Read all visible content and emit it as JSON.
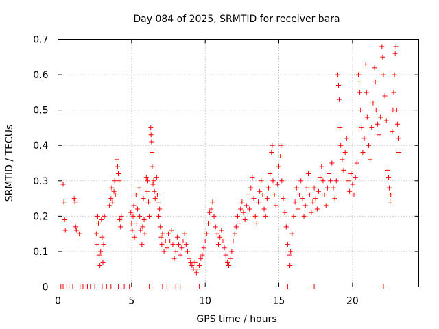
{
  "chart_data": {
    "type": "scatter",
    "title": "Day 084 of 2025, SRMTID for receiver bara",
    "xlabel": "GPS time / hours",
    "ylabel": "SRMTID / TECUs",
    "xlim": [
      0,
      24.5
    ],
    "ylim": [
      0,
      0.7
    ],
    "xticks": [
      0,
      5,
      10,
      15,
      20
    ],
    "xtick_labels": [
      "0",
      "5",
      "10",
      "15",
      "20"
    ],
    "yticks": [
      0,
      0.1,
      0.2,
      0.3,
      0.4,
      0.5,
      0.6,
      0.7
    ],
    "ytick_labels": [
      "0",
      "0.1",
      "0.2",
      "0.3",
      "0.4",
      "0.5",
      "0.6",
      "0.7"
    ],
    "grid": true,
    "marker": "+",
    "color": "#ff0000",
    "series": [
      {
        "name": "SRMTID",
        "points": [
          [
            0.2,
            0.0
          ],
          [
            0.35,
            0.0
          ],
          [
            0.6,
            0.0
          ],
          [
            0.75,
            0.0
          ],
          [
            1.0,
            0.0
          ],
          [
            1.5,
            0.0
          ],
          [
            1.7,
            0.0
          ],
          [
            2.0,
            0.0
          ],
          [
            2.2,
            0.0
          ],
          [
            2.5,
            0.0
          ],
          [
            3.0,
            0.0
          ],
          [
            3.3,
            0.0
          ],
          [
            3.6,
            0.0
          ],
          [
            4.1,
            0.0
          ],
          [
            4.5,
            0.0
          ],
          [
            4.85,
            0.0
          ],
          [
            6.2,
            0.0
          ],
          [
            7.1,
            0.0
          ],
          [
            7.4,
            0.0
          ],
          [
            8.0,
            0.0
          ],
          [
            8.3,
            0.0
          ],
          [
            9.6,
            0.0
          ],
          [
            15.6,
            0.0
          ],
          [
            17.4,
            0.0
          ],
          [
            22.1,
            0.0
          ],
          [
            0.35,
            0.29
          ],
          [
            0.4,
            0.24
          ],
          [
            0.45,
            0.19
          ],
          [
            0.5,
            0.16
          ],
          [
            1.1,
            0.25
          ],
          [
            1.15,
            0.24
          ],
          [
            1.2,
            0.17
          ],
          [
            1.25,
            0.16
          ],
          [
            1.45,
            0.15
          ],
          [
            2.6,
            0.15
          ],
          [
            2.65,
            0.12
          ],
          [
            2.7,
            0.2
          ],
          [
            2.75,
            0.18
          ],
          [
            2.8,
            0.09
          ],
          [
            2.85,
            0.06
          ],
          [
            2.9,
            0.1
          ],
          [
            2.95,
            0.19
          ],
          [
            3.0,
            0.14
          ],
          [
            3.05,
            0.07
          ],
          [
            3.1,
            0.12
          ],
          [
            3.15,
            0.2
          ],
          [
            3.5,
            0.23
          ],
          [
            3.6,
            0.25
          ],
          [
            3.65,
            0.28
          ],
          [
            3.7,
            0.24
          ],
          [
            3.8,
            0.27
          ],
          [
            3.85,
            0.3
          ],
          [
            3.9,
            0.26
          ],
          [
            4.0,
            0.36
          ],
          [
            4.05,
            0.34
          ],
          [
            4.1,
            0.32
          ],
          [
            4.15,
            0.3
          ],
          [
            4.2,
            0.19
          ],
          [
            4.25,
            0.17
          ],
          [
            4.3,
            0.2
          ],
          [
            4.95,
            0.21
          ],
          [
            5.0,
            0.18
          ],
          [
            5.05,
            0.16
          ],
          [
            5.1,
            0.2
          ],
          [
            5.15,
            0.23
          ],
          [
            5.2,
            0.14
          ],
          [
            5.3,
            0.26
          ],
          [
            5.35,
            0.18
          ],
          [
            5.4,
            0.22
          ],
          [
            5.5,
            0.28
          ],
          [
            5.55,
            0.2
          ],
          [
            5.6,
            0.16
          ],
          [
            5.7,
            0.12
          ],
          [
            5.75,
            0.17
          ],
          [
            5.8,
            0.25
          ],
          [
            5.85,
            0.19
          ],
          [
            5.9,
            0.15
          ],
          [
            6.0,
            0.31
          ],
          [
            6.05,
            0.27
          ],
          [
            6.1,
            0.3
          ],
          [
            6.15,
            0.24
          ],
          [
            6.2,
            0.2
          ],
          [
            6.3,
            0.45
          ],
          [
            6.32,
            0.43
          ],
          [
            6.35,
            0.41
          ],
          [
            6.38,
            0.38
          ],
          [
            6.4,
            0.34
          ],
          [
            6.45,
            0.29
          ],
          [
            6.5,
            0.3
          ],
          [
            6.55,
            0.27
          ],
          [
            6.6,
            0.25
          ],
          [
            6.7,
            0.31
          ],
          [
            6.75,
            0.26
          ],
          [
            6.8,
            0.24
          ],
          [
            6.85,
            0.2
          ],
          [
            6.9,
            0.22
          ],
          [
            6.95,
            0.17
          ],
          [
            7.0,
            0.14
          ],
          [
            7.05,
            0.12
          ],
          [
            7.1,
            0.15
          ],
          [
            7.2,
            0.1
          ],
          [
            7.3,
            0.13
          ],
          [
            7.4,
            0.11
          ],
          [
            7.5,
            0.15
          ],
          [
            7.6,
            0.13
          ],
          [
            7.7,
            0.16
          ],
          [
            7.8,
            0.12
          ],
          [
            7.9,
            0.08
          ],
          [
            8.0,
            0.1
          ],
          [
            8.1,
            0.14
          ],
          [
            8.2,
            0.12
          ],
          [
            8.3,
            0.09
          ],
          [
            8.4,
            0.11
          ],
          [
            8.5,
            0.13
          ],
          [
            8.6,
            0.15
          ],
          [
            8.7,
            0.12
          ],
          [
            8.8,
            0.1
          ],
          [
            8.9,
            0.08
          ],
          [
            9.0,
            0.07
          ],
          [
            9.1,
            0.06
          ],
          [
            9.2,
            0.05
          ],
          [
            9.3,
            0.07
          ],
          [
            9.4,
            0.04
          ],
          [
            9.5,
            0.05
          ],
          [
            9.6,
            0.06
          ],
          [
            9.7,
            0.08
          ],
          [
            9.8,
            0.09
          ],
          [
            9.9,
            0.11
          ],
          [
            10.0,
            0.13
          ],
          [
            10.1,
            0.15
          ],
          [
            10.2,
            0.18
          ],
          [
            10.3,
            0.21
          ],
          [
            10.4,
            0.22
          ],
          [
            10.5,
            0.24
          ],
          [
            10.6,
            0.2
          ],
          [
            10.7,
            0.17
          ],
          [
            10.8,
            0.15
          ],
          [
            10.9,
            0.12
          ],
          [
            11.0,
            0.14
          ],
          [
            11.1,
            0.16
          ],
          [
            11.2,
            0.13
          ],
          [
            11.3,
            0.11
          ],
          [
            11.4,
            0.09
          ],
          [
            11.5,
            0.07
          ],
          [
            11.6,
            0.06
          ],
          [
            11.7,
            0.08
          ],
          [
            11.8,
            0.1
          ],
          [
            11.9,
            0.13
          ],
          [
            12.0,
            0.15
          ],
          [
            12.1,
            0.17
          ],
          [
            12.2,
            0.2
          ],
          [
            12.3,
            0.18
          ],
          [
            12.4,
            0.22
          ],
          [
            12.5,
            0.24
          ],
          [
            12.6,
            0.21
          ],
          [
            12.7,
            0.19
          ],
          [
            12.8,
            0.23
          ],
          [
            12.9,
            0.26
          ],
          [
            13.0,
            0.22
          ],
          [
            13.1,
            0.28
          ],
          [
            13.2,
            0.31
          ],
          [
            13.3,
            0.25
          ],
          [
            13.4,
            0.2
          ],
          [
            13.5,
            0.18
          ],
          [
            13.6,
            0.24
          ],
          [
            13.7,
            0.27
          ],
          [
            13.8,
            0.3
          ],
          [
            13.9,
            0.26
          ],
          [
            14.0,
            0.22
          ],
          [
            14.1,
            0.2
          ],
          [
            14.2,
            0.25
          ],
          [
            14.3,
            0.28
          ],
          [
            14.4,
            0.32
          ],
          [
            14.5,
            0.38
          ],
          [
            14.55,
            0.4
          ],
          [
            14.6,
            0.3
          ],
          [
            14.7,
            0.26
          ],
          [
            14.8,
            0.23
          ],
          [
            14.9,
            0.29
          ],
          [
            15.0,
            0.34
          ],
          [
            15.1,
            0.37
          ],
          [
            15.15,
            0.4
          ],
          [
            15.2,
            0.3
          ],
          [
            15.3,
            0.25
          ],
          [
            15.4,
            0.21
          ],
          [
            15.5,
            0.17
          ],
          [
            15.6,
            0.12
          ],
          [
            15.7,
            0.09
          ],
          [
            15.75,
            0.06
          ],
          [
            15.8,
            0.1
          ],
          [
            15.9,
            0.15
          ],
          [
            16.0,
            0.2
          ],
          [
            16.1,
            0.24
          ],
          [
            16.2,
            0.28
          ],
          [
            16.3,
            0.22
          ],
          [
            16.4,
            0.26
          ],
          [
            16.5,
            0.3
          ],
          [
            16.6,
            0.25
          ],
          [
            16.7,
            0.2
          ],
          [
            16.8,
            0.23
          ],
          [
            16.9,
            0.28
          ],
          [
            17.0,
            0.32
          ],
          [
            17.1,
            0.26
          ],
          [
            17.2,
            0.21
          ],
          [
            17.3,
            0.24
          ],
          [
            17.4,
            0.28
          ],
          [
            17.5,
            0.25
          ],
          [
            17.6,
            0.22
          ],
          [
            17.7,
            0.27
          ],
          [
            17.8,
            0.31
          ],
          [
            17.9,
            0.34
          ],
          [
            18.0,
            0.3
          ],
          [
            18.1,
            0.26
          ],
          [
            18.2,
            0.23
          ],
          [
            18.3,
            0.28
          ],
          [
            18.4,
            0.32
          ],
          [
            18.5,
            0.3
          ],
          [
            18.6,
            0.35
          ],
          [
            18.7,
            0.28
          ],
          [
            18.8,
            0.25
          ],
          [
            18.9,
            0.3
          ],
          [
            19.0,
            0.6
          ],
          [
            19.05,
            0.57
          ],
          [
            19.1,
            0.53
          ],
          [
            19.15,
            0.45
          ],
          [
            19.2,
            0.4
          ],
          [
            19.3,
            0.36
          ],
          [
            19.4,
            0.33
          ],
          [
            19.5,
            0.38
          ],
          [
            19.6,
            0.42
          ],
          [
            19.7,
            0.3
          ],
          [
            19.8,
            0.27
          ],
          [
            19.9,
            0.32
          ],
          [
            20.0,
            0.29
          ],
          [
            20.1,
            0.26
          ],
          [
            20.2,
            0.31
          ],
          [
            20.3,
            0.35
          ],
          [
            20.4,
            0.6
          ],
          [
            20.45,
            0.58
          ],
          [
            20.5,
            0.55
          ],
          [
            20.55,
            0.5
          ],
          [
            20.6,
            0.45
          ],
          [
            20.7,
            0.38
          ],
          [
            20.8,
            0.42
          ],
          [
            20.9,
            0.63
          ],
          [
            20.95,
            0.55
          ],
          [
            21.0,
            0.48
          ],
          [
            21.1,
            0.4
          ],
          [
            21.2,
            0.36
          ],
          [
            21.3,
            0.45
          ],
          [
            21.4,
            0.52
          ],
          [
            21.5,
            0.62
          ],
          [
            21.55,
            0.58
          ],
          [
            21.6,
            0.5
          ],
          [
            21.7,
            0.46
          ],
          [
            21.8,
            0.43
          ],
          [
            21.9,
            0.48
          ],
          [
            22.0,
            0.68
          ],
          [
            22.05,
            0.65
          ],
          [
            22.1,
            0.6
          ],
          [
            22.2,
            0.54
          ],
          [
            22.3,
            0.47
          ],
          [
            22.4,
            0.33
          ],
          [
            22.45,
            0.31
          ],
          [
            22.5,
            0.28
          ],
          [
            22.55,
            0.24
          ],
          [
            22.6,
            0.26
          ],
          [
            22.7,
            0.44
          ],
          [
            22.75,
            0.5
          ],
          [
            22.8,
            0.55
          ],
          [
            22.85,
            0.6
          ],
          [
            22.9,
            0.66
          ],
          [
            22.95,
            0.68
          ],
          [
            23.0,
            0.5
          ],
          [
            23.05,
            0.46
          ],
          [
            23.1,
            0.42
          ],
          [
            23.15,
            0.38
          ]
        ]
      }
    ]
  }
}
